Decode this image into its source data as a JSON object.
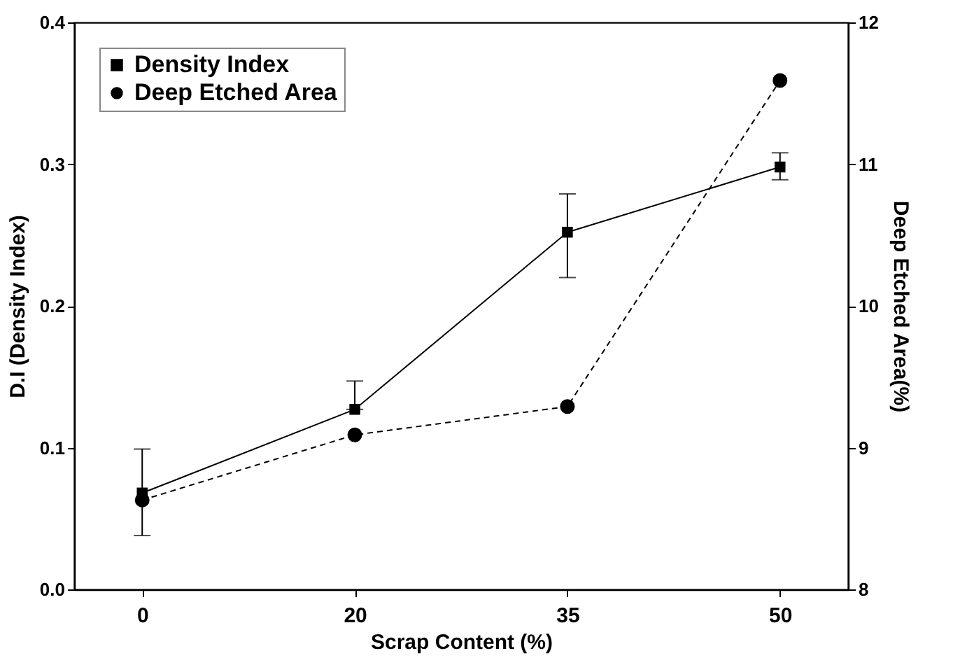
{
  "chart_data": {
    "type": "line",
    "xlabel": "Scrap Content (%)",
    "ylabel": "D.I (Density Index)",
    "y2label": "Deep Etched Area(%)",
    "categories": [
      "0",
      "20",
      "35",
      "50"
    ],
    "series": [
      {
        "name": "Density Index",
        "color": "#000000",
        "values": [
          0.068,
          0.127,
          0.252,
          0.298
        ],
        "errors": [
          [
            0.038,
            0.099
          ],
          [
            0.127,
            0.147
          ],
          [
            0.22,
            0.279
          ],
          [
            0.289,
            0.308
          ]
        ],
        "marker": "square",
        "line_style": "solid"
      },
      {
        "name": "Deep Etched Area",
        "color": "#000000",
        "values": [
          8.63,
          9.09,
          9.29,
          11.59
        ],
        "axis": "y2",
        "marker": "circle",
        "line_style": "dashed"
      }
    ],
    "ylim": [
      0,
      0.4
    ],
    "yticks": [
      {
        "value": 0,
        "label": "0.0"
      },
      {
        "value": 0.1,
        "label": "0.1"
      },
      {
        "value": 0.2,
        "label": "0.2"
      },
      {
        "value": 0.3,
        "label": "0.3"
      },
      {
        "value": 0.4,
        "label": "0.4"
      }
    ],
    "y2lim": [
      8,
      12
    ],
    "y2ticks": [
      8,
      9,
      10,
      11,
      12
    ],
    "grid": false,
    "legend": "top left"
  }
}
